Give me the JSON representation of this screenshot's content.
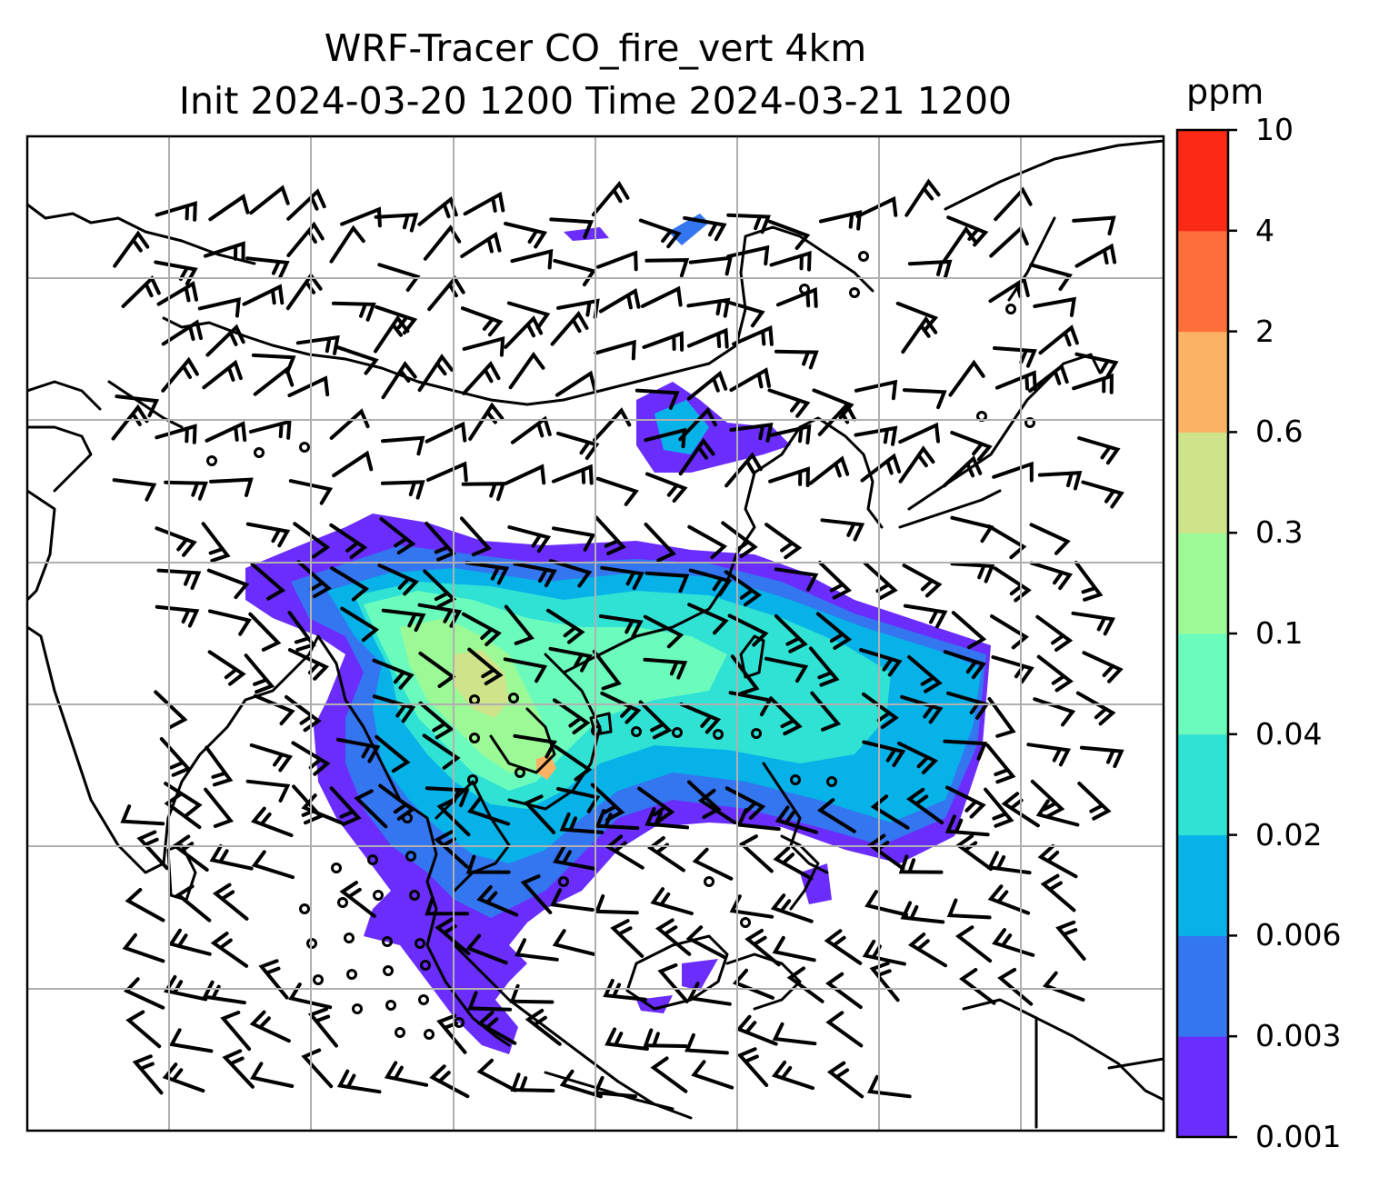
{
  "chart_data": {
    "type": "heatmap",
    "title_line1": "WRF-Tracer CO_fire_vert 4km",
    "title_line2": "Init 2024-03-20 1200 Time 2024-03-21 1200",
    "colorbar": {
      "unit": "ppm",
      "levels": [
        "0.001",
        "0.003",
        "0.006",
        "0.02",
        "0.04",
        "0.1",
        "0.3",
        "0.6",
        "2",
        "4",
        "10"
      ],
      "level_values": [
        0.001,
        0.003,
        0.006,
        0.02,
        0.04,
        0.1,
        0.3,
        0.6,
        2,
        4,
        10
      ],
      "colors": [
        "#6a2dfb",
        "#3475f0",
        "#07b2e9",
        "#2fe2d4",
        "#6bfcbd",
        "#9bf996",
        "#cfe38a",
        "#fcb264",
        "#fd6f3a",
        "#fc2917"
      ]
    },
    "map": {
      "grid": true,
      "features": [
        "coastlines",
        "country borders",
        "wind barbs"
      ],
      "colors": {
        "land_line": "#000000",
        "grid": "#b0b0b0"
      }
    }
  }
}
